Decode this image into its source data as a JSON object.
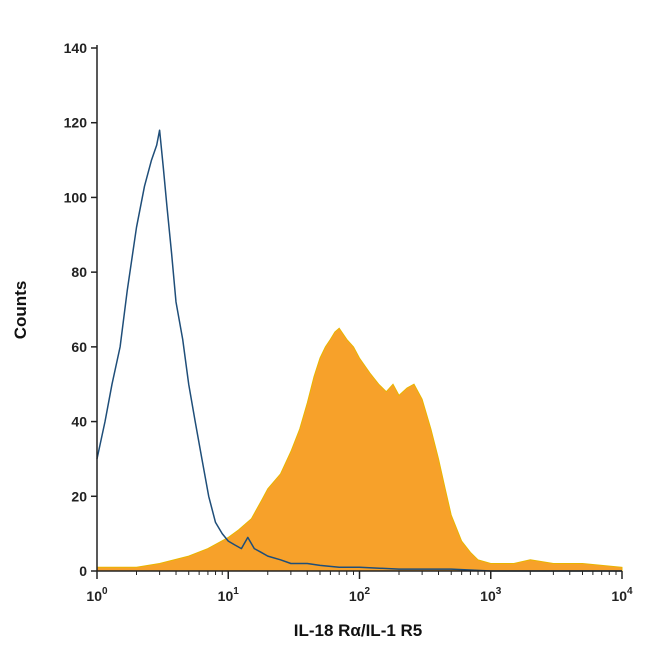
{
  "chart_data": {
    "type": "area",
    "title": "",
    "xlabel": "IL-18 Rα/IL-1 R5",
    "ylabel": "Counts",
    "x_scale": "log",
    "xlim": [
      1,
      10000
    ],
    "ylim": [
      0,
      140
    ],
    "grid": false,
    "y_ticks": [
      0,
      20,
      40,
      60,
      80,
      100,
      120,
      140
    ],
    "x_ticks": [
      {
        "value": 1,
        "base": "10",
        "exp": "0"
      },
      {
        "value": 10,
        "base": "10",
        "exp": "1"
      },
      {
        "value": 100,
        "base": "10",
        "exp": "2"
      },
      {
        "value": 1000,
        "base": "10",
        "exp": "3"
      },
      {
        "value": 10000,
        "base": "10",
        "exp": "4"
      }
    ],
    "series": [
      {
        "style": "outline",
        "color": "#1f4e79",
        "x": [
          1.0,
          1.15,
          1.3,
          1.5,
          1.7,
          2.0,
          2.3,
          2.6,
          2.85,
          3.0,
          3.2,
          3.4,
          3.7,
          4.0,
          4.5,
          5.0,
          5.6,
          6.3,
          7.1,
          8.0,
          9.0,
          10.0,
          11.2,
          12.6,
          14.1,
          15.8,
          17.8,
          20.0,
          25.0,
          30.0,
          40.0,
          50.0,
          70.0,
          100.0,
          200.0,
          500.0,
          1000.0,
          3000.0,
          10000.0
        ],
        "y": [
          30,
          40,
          50,
          60,
          75,
          92,
          103,
          110,
          114,
          118,
          108,
          98,
          85,
          72,
          62,
          50,
          40,
          30,
          20,
          13,
          10,
          8,
          7,
          6,
          9,
          6,
          5,
          4,
          3,
          2,
          2,
          1.5,
          1,
          1,
          0.5,
          0.5,
          0,
          0,
          0
        ]
      },
      {
        "style": "filled",
        "color": "#f7a12a",
        "x": [
          1.0,
          2.0,
          3.0,
          5.0,
          7.0,
          10.0,
          12.0,
          15.0,
          18.0,
          20.0,
          25.0,
          30.0,
          35.0,
          40.0,
          45.0,
          50.0,
          55.0,
          60.0,
          65.0,
          70.0,
          80.0,
          90.0,
          100.0,
          120.0,
          140.0,
          160.0,
          180.0,
          200.0,
          230.0,
          260.0,
          300.0,
          350.0,
          400.0,
          450.0,
          500.0,
          600.0,
          700.0,
          800.0,
          1000.0,
          1500.0,
          2000.0,
          3000.0,
          5000.0,
          10000.0
        ],
        "y": [
          1,
          1,
          2,
          4,
          6,
          9,
          11,
          14,
          19,
          22,
          26,
          32,
          38,
          45,
          52,
          57,
          60,
          62,
          64,
          65,
          62,
          60,
          57,
          53,
          50,
          48,
          50,
          47,
          49,
          50,
          46,
          38,
          30,
          22,
          15,
          8,
          5,
          3,
          2,
          2,
          3,
          2,
          2,
          1
        ]
      }
    ]
  }
}
